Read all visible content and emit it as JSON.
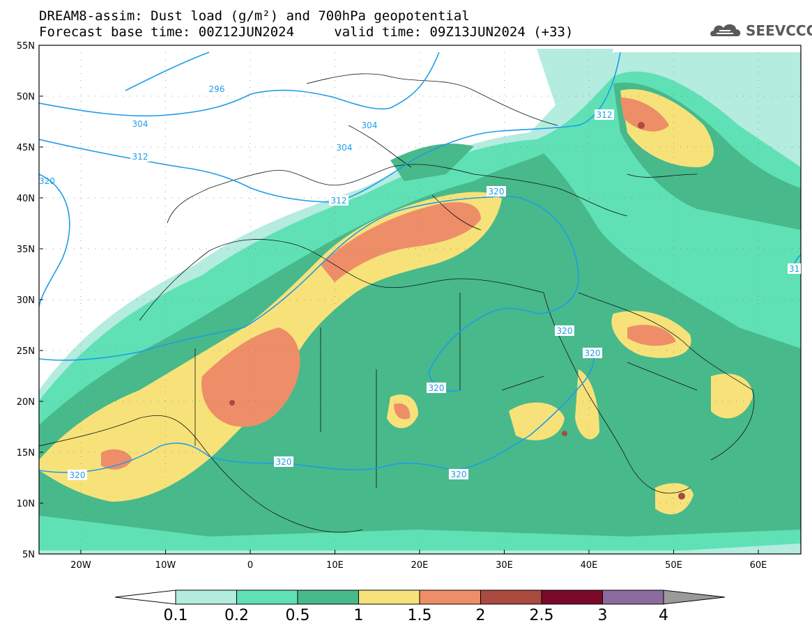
{
  "title": {
    "line1": "DREAM8-assim: Dust load (g/m²) and 700hPa geopotential",
    "line2_base": "Forecast base time: 00Z12JUN2024",
    "line2_valid": "valid time: 09Z13JUN2024 (+33)"
  },
  "logo": {
    "text": "SEEVCCC",
    "icon": "cloud-logo-icon"
  },
  "map": {
    "lat_labels": [
      "55N",
      "50N",
      "45N",
      "40N",
      "35N",
      "30N",
      "25N",
      "20N",
      "15N",
      "10N",
      "5N"
    ],
    "lon_labels": [
      "20W",
      "10W",
      "0",
      "10E",
      "20E",
      "30E",
      "40E",
      "50E",
      "60E"
    ],
    "contour_labels": [
      "296",
      "304",
      "304",
      "304",
      "312",
      "312",
      "312",
      "320",
      "320",
      "320",
      "320",
      "320",
      "320",
      "320",
      "320",
      "31"
    ]
  },
  "colorbar": {
    "labels": [
      "0.1",
      "0.2",
      "0.5",
      "1",
      "1.5",
      "2",
      "2.5",
      "3",
      "4"
    ],
    "colors": [
      "#b4ecdf",
      "#5fe1b5",
      "#48b98b",
      "#f7e27a",
      "#ee8e68",
      "#a94b3f",
      "#7a0a2a",
      "#8c6b9e",
      "#9a9a9a"
    ]
  },
  "colors": {
    "land": "#ffffff",
    "isoline": "#1e9ce8"
  }
}
